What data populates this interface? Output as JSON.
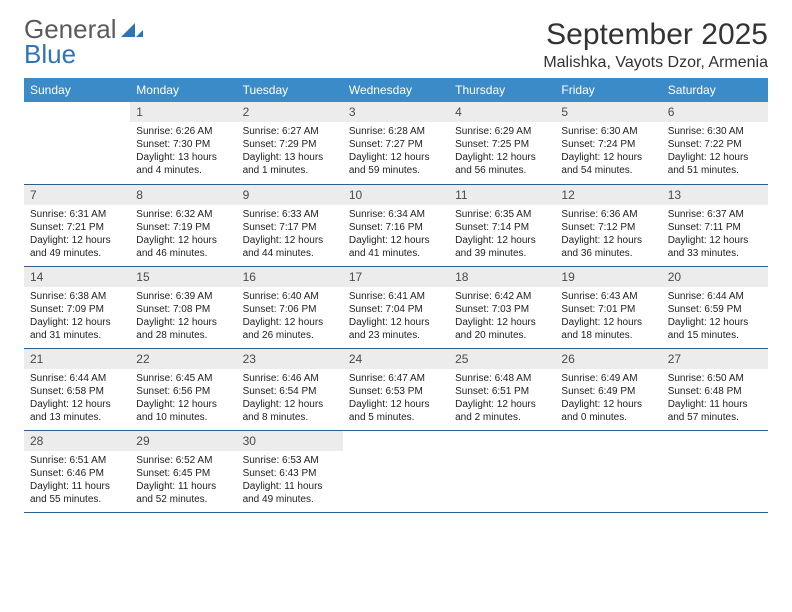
{
  "brand": {
    "name_part1": "General",
    "name_part2": "Blue",
    "text_color": "#5b5b5b",
    "accent_color": "#2f74b5"
  },
  "title": {
    "month": "September 2025",
    "location": "Malishka, Vayots Dzor, Armenia",
    "title_fontsize": 30,
    "location_fontsize": 16
  },
  "colors": {
    "header_bg": "#3b8bc9",
    "header_text": "#ffffff",
    "daynum_bg": "#ececec",
    "daynum_text": "#4a4a4a",
    "row_border": "#2c5f8d",
    "body_text": "#222222",
    "page_bg": "#ffffff"
  },
  "days_of_week": [
    "Sunday",
    "Monday",
    "Tuesday",
    "Wednesday",
    "Thursday",
    "Friday",
    "Saturday"
  ],
  "weeks": [
    [
      {
        "num": "",
        "sunrise": "",
        "sunset": "",
        "daylight": ""
      },
      {
        "num": "1",
        "sunrise": "Sunrise: 6:26 AM",
        "sunset": "Sunset: 7:30 PM",
        "daylight": "Daylight: 13 hours and 4 minutes."
      },
      {
        "num": "2",
        "sunrise": "Sunrise: 6:27 AM",
        "sunset": "Sunset: 7:29 PM",
        "daylight": "Daylight: 13 hours and 1 minutes."
      },
      {
        "num": "3",
        "sunrise": "Sunrise: 6:28 AM",
        "sunset": "Sunset: 7:27 PM",
        "daylight": "Daylight: 12 hours and 59 minutes."
      },
      {
        "num": "4",
        "sunrise": "Sunrise: 6:29 AM",
        "sunset": "Sunset: 7:25 PM",
        "daylight": "Daylight: 12 hours and 56 minutes."
      },
      {
        "num": "5",
        "sunrise": "Sunrise: 6:30 AM",
        "sunset": "Sunset: 7:24 PM",
        "daylight": "Daylight: 12 hours and 54 minutes."
      },
      {
        "num": "6",
        "sunrise": "Sunrise: 6:30 AM",
        "sunset": "Sunset: 7:22 PM",
        "daylight": "Daylight: 12 hours and 51 minutes."
      }
    ],
    [
      {
        "num": "7",
        "sunrise": "Sunrise: 6:31 AM",
        "sunset": "Sunset: 7:21 PM",
        "daylight": "Daylight: 12 hours and 49 minutes."
      },
      {
        "num": "8",
        "sunrise": "Sunrise: 6:32 AM",
        "sunset": "Sunset: 7:19 PM",
        "daylight": "Daylight: 12 hours and 46 minutes."
      },
      {
        "num": "9",
        "sunrise": "Sunrise: 6:33 AM",
        "sunset": "Sunset: 7:17 PM",
        "daylight": "Daylight: 12 hours and 44 minutes."
      },
      {
        "num": "10",
        "sunrise": "Sunrise: 6:34 AM",
        "sunset": "Sunset: 7:16 PM",
        "daylight": "Daylight: 12 hours and 41 minutes."
      },
      {
        "num": "11",
        "sunrise": "Sunrise: 6:35 AM",
        "sunset": "Sunset: 7:14 PM",
        "daylight": "Daylight: 12 hours and 39 minutes."
      },
      {
        "num": "12",
        "sunrise": "Sunrise: 6:36 AM",
        "sunset": "Sunset: 7:12 PM",
        "daylight": "Daylight: 12 hours and 36 minutes."
      },
      {
        "num": "13",
        "sunrise": "Sunrise: 6:37 AM",
        "sunset": "Sunset: 7:11 PM",
        "daylight": "Daylight: 12 hours and 33 minutes."
      }
    ],
    [
      {
        "num": "14",
        "sunrise": "Sunrise: 6:38 AM",
        "sunset": "Sunset: 7:09 PM",
        "daylight": "Daylight: 12 hours and 31 minutes."
      },
      {
        "num": "15",
        "sunrise": "Sunrise: 6:39 AM",
        "sunset": "Sunset: 7:08 PM",
        "daylight": "Daylight: 12 hours and 28 minutes."
      },
      {
        "num": "16",
        "sunrise": "Sunrise: 6:40 AM",
        "sunset": "Sunset: 7:06 PM",
        "daylight": "Daylight: 12 hours and 26 minutes."
      },
      {
        "num": "17",
        "sunrise": "Sunrise: 6:41 AM",
        "sunset": "Sunset: 7:04 PM",
        "daylight": "Daylight: 12 hours and 23 minutes."
      },
      {
        "num": "18",
        "sunrise": "Sunrise: 6:42 AM",
        "sunset": "Sunset: 7:03 PM",
        "daylight": "Daylight: 12 hours and 20 minutes."
      },
      {
        "num": "19",
        "sunrise": "Sunrise: 6:43 AM",
        "sunset": "Sunset: 7:01 PM",
        "daylight": "Daylight: 12 hours and 18 minutes."
      },
      {
        "num": "20",
        "sunrise": "Sunrise: 6:44 AM",
        "sunset": "Sunset: 6:59 PM",
        "daylight": "Daylight: 12 hours and 15 minutes."
      }
    ],
    [
      {
        "num": "21",
        "sunrise": "Sunrise: 6:44 AM",
        "sunset": "Sunset: 6:58 PM",
        "daylight": "Daylight: 12 hours and 13 minutes."
      },
      {
        "num": "22",
        "sunrise": "Sunrise: 6:45 AM",
        "sunset": "Sunset: 6:56 PM",
        "daylight": "Daylight: 12 hours and 10 minutes."
      },
      {
        "num": "23",
        "sunrise": "Sunrise: 6:46 AM",
        "sunset": "Sunset: 6:54 PM",
        "daylight": "Daylight: 12 hours and 8 minutes."
      },
      {
        "num": "24",
        "sunrise": "Sunrise: 6:47 AM",
        "sunset": "Sunset: 6:53 PM",
        "daylight": "Daylight: 12 hours and 5 minutes."
      },
      {
        "num": "25",
        "sunrise": "Sunrise: 6:48 AM",
        "sunset": "Sunset: 6:51 PM",
        "daylight": "Daylight: 12 hours and 2 minutes."
      },
      {
        "num": "26",
        "sunrise": "Sunrise: 6:49 AM",
        "sunset": "Sunset: 6:49 PM",
        "daylight": "Daylight: 12 hours and 0 minutes."
      },
      {
        "num": "27",
        "sunrise": "Sunrise: 6:50 AM",
        "sunset": "Sunset: 6:48 PM",
        "daylight": "Daylight: 11 hours and 57 minutes."
      }
    ],
    [
      {
        "num": "28",
        "sunrise": "Sunrise: 6:51 AM",
        "sunset": "Sunset: 6:46 PM",
        "daylight": "Daylight: 11 hours and 55 minutes."
      },
      {
        "num": "29",
        "sunrise": "Sunrise: 6:52 AM",
        "sunset": "Sunset: 6:45 PM",
        "daylight": "Daylight: 11 hours and 52 minutes."
      },
      {
        "num": "30",
        "sunrise": "Sunrise: 6:53 AM",
        "sunset": "Sunset: 6:43 PM",
        "daylight": "Daylight: 11 hours and 49 minutes."
      },
      {
        "num": "",
        "sunrise": "",
        "sunset": "",
        "daylight": ""
      },
      {
        "num": "",
        "sunrise": "",
        "sunset": "",
        "daylight": ""
      },
      {
        "num": "",
        "sunrise": "",
        "sunset": "",
        "daylight": ""
      },
      {
        "num": "",
        "sunrise": "",
        "sunset": "",
        "daylight": ""
      }
    ]
  ]
}
